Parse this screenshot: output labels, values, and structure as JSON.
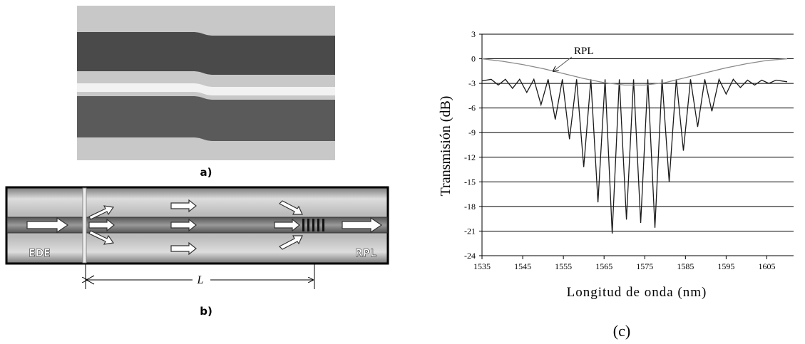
{
  "panel_a": {
    "label": "a)"
  },
  "panel_b": {
    "label": "b)",
    "ede": "EDE",
    "rpl": "RPL",
    "length": "L"
  },
  "chart_data": {
    "type": "line",
    "ylabel": "Transmisión (dB)",
    "xlabel": "Longitud de onda (nm)",
    "panel_label": "(c)",
    "xlim": [
      1535,
      1610
    ],
    "xticks": [
      1535,
      1545,
      1555,
      1565,
      1575,
      1585,
      1595,
      1605
    ],
    "ylim": [
      -24,
      3
    ],
    "yticks": [
      3,
      0,
      -3,
      -6,
      -9,
      -12,
      -15,
      -18,
      -21,
      -24
    ],
    "grid": true,
    "series": [
      {
        "color": "#1a1a1a",
        "x": [
          1535,
          1537.25,
          1539,
          1540.75,
          1542.5,
          1544.25,
          1546,
          1547.75,
          1549.5,
          1551.25,
          1553,
          1554.75,
          1556.5,
          1558.25,
          1560,
          1561.75,
          1563.5,
          1565.25,
          1567,
          1568.75,
          1570.5,
          1572.25,
          1574,
          1575.75,
          1577.5,
          1579.25,
          1581,
          1582.75,
          1584.5,
          1586.25,
          1588,
          1589.75,
          1591.5,
          1593.25,
          1595,
          1596.75,
          1598.5,
          1600.25,
          1602,
          1603.75,
          1605.5,
          1607.25,
          1610
        ],
        "values": [
          -2.7,
          -2.5,
          -3.2,
          -2.5,
          -3.6,
          -2.5,
          -4.1,
          -2.5,
          -5.6,
          -2.5,
          -7.4,
          -2.5,
          -9.8,
          -2.5,
          -13.2,
          -2.5,
          -17.5,
          -2.5,
          -21.3,
          -2.5,
          -19.6,
          -2.5,
          -20,
          -2.5,
          -20.6,
          -2.5,
          -15,
          -2.5,
          -11.2,
          -2.5,
          -8.3,
          -2.5,
          -6.4,
          -2.5,
          -4.3,
          -2.5,
          -3.5,
          -2.6,
          -3.2,
          -2.6,
          -3.0,
          -2.6,
          -2.8
        ]
      },
      {
        "name": "RPL",
        "color": "#8a8a8a",
        "x": [
          1535,
          1540,
          1545,
          1550,
          1555,
          1560,
          1565,
          1570,
          1575,
          1580,
          1585,
          1590,
          1595,
          1600,
          1605,
          1610
        ],
        "values": [
          0,
          -0.3,
          -0.7,
          -1.2,
          -1.8,
          -2.4,
          -2.9,
          -3.2,
          -3.2,
          -2.9,
          -2.3,
          -1.7,
          -1.1,
          -0.6,
          -0.2,
          0
        ]
      }
    ]
  }
}
